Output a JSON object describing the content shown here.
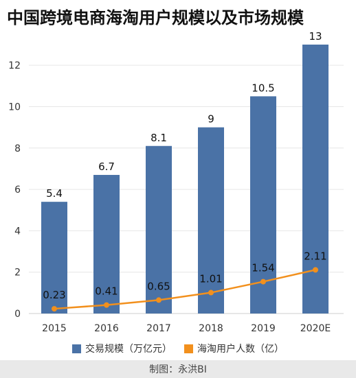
{
  "title": "中国跨境电商海淘用户规模以及市场规模",
  "footer": "制图：永洪BI",
  "colors": {
    "bar": "#4a72a6",
    "line": "#f2901d",
    "grid": "#e6e6e6",
    "axis": "#cccccc"
  },
  "chart_data": {
    "type": "bar",
    "title": "中国跨境电商海淘用户规模以及市场规模",
    "categories": [
      "2015",
      "2016",
      "2017",
      "2018",
      "2019",
      "2020E"
    ],
    "series": [
      {
        "name": "交易规模（万亿元）",
        "type": "bar",
        "values": [
          5.4,
          6.7,
          8.1,
          9,
          10.5,
          13
        ],
        "labels": [
          "5.4",
          "6.7",
          "8.1",
          "9",
          "10.5",
          "13"
        ]
      },
      {
        "name": "海淘用户人数（亿）",
        "type": "line",
        "values": [
          0.23,
          0.41,
          0.65,
          1.01,
          1.54,
          2.11
        ],
        "labels": [
          "0.23",
          "0.41",
          "0.65",
          "1.01",
          "1.54",
          "2.11"
        ]
      }
    ],
    "yticks": [
      "0",
      "2",
      "4",
      "6",
      "8",
      "10",
      "12"
    ],
    "ylim": [
      0,
      13
    ],
    "grid": true,
    "legend": "bottom"
  }
}
